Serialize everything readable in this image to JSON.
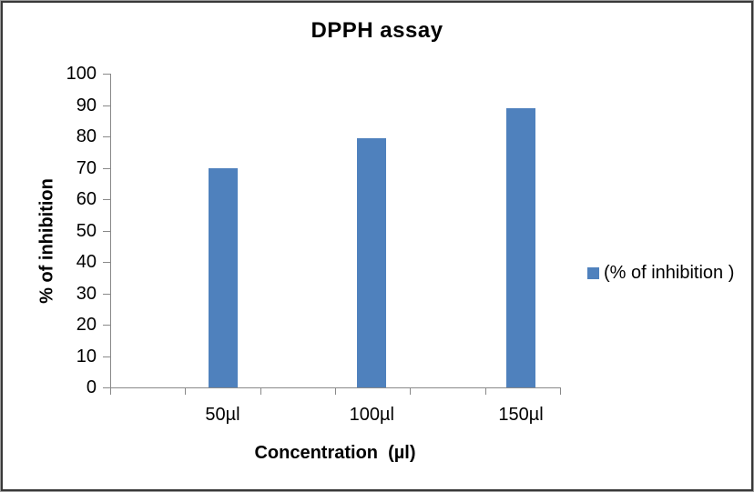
{
  "chart_data": {
    "type": "bar",
    "title": "DPPH assay",
    "categories": [
      "50µl",
      "100µl",
      "150µl"
    ],
    "series": [
      {
        "name": "(% of inhibition )",
        "values": [
          70,
          79.4,
          89
        ]
      }
    ],
    "xlabel": "Concentration  (µl)",
    "ylabel": "% of inhibition",
    "ylim": [
      0,
      100
    ],
    "yticks": [
      0,
      10,
      20,
      30,
      40,
      50,
      60,
      70,
      80,
      90,
      100
    ],
    "x_tick_divisions": 6,
    "grid": false,
    "legend_position": "right",
    "colors": {
      "bar": "#4F81BD",
      "axis": "#898989",
      "text": "#000000",
      "background": "#FFFFFF"
    }
  }
}
